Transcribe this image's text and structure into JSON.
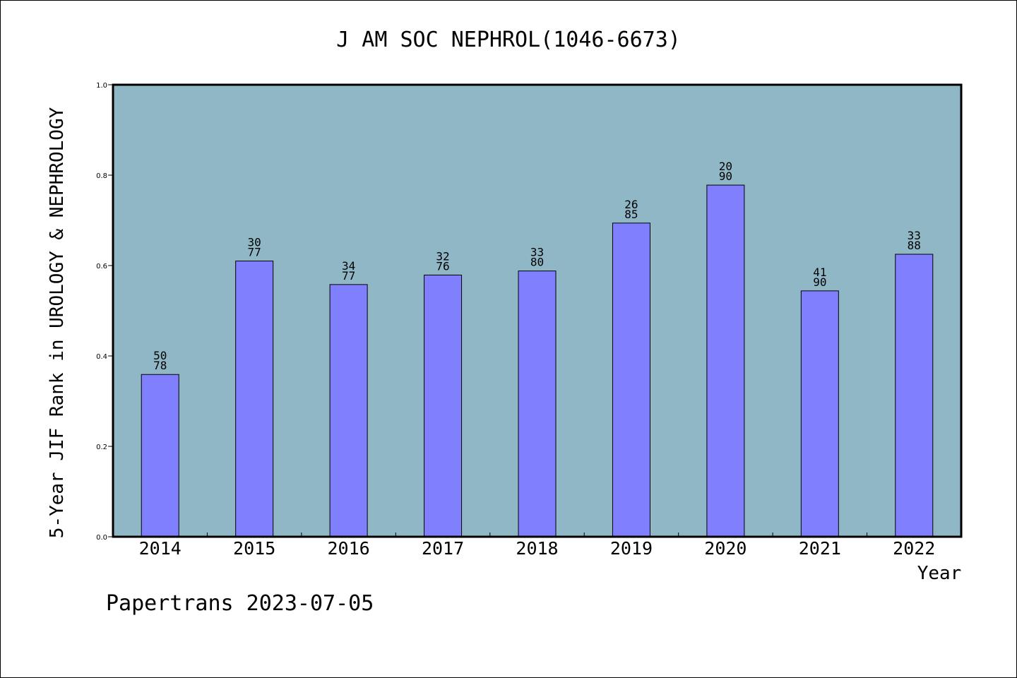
{
  "colors": {
    "plot_background": "#8fb7c6",
    "bar_fill": "#8080ff",
    "bar_stroke": "#000000",
    "frame": "#000000"
  },
  "watermark": "Papertrans 2023-07-05",
  "chart_data": {
    "type": "bar",
    "title": "J AM SOC NEPHROL(1046-6673)",
    "xlabel": "Year",
    "ylabel": "5-Year JIF Rank in UROLOGY & NEPHROLOGY",
    "ylim": [
      0,
      1
    ],
    "yticks": [
      "0.0",
      "0.2",
      "0.4",
      "0.6",
      "0.8",
      "1.0"
    ],
    "grid": false,
    "categories": [
      "2014",
      "2015",
      "2016",
      "2017",
      "2018",
      "2019",
      "2020",
      "2021",
      "2022"
    ],
    "values": [
      0.359,
      0.61,
      0.558,
      0.579,
      0.588,
      0.694,
      0.778,
      0.544,
      0.625
    ],
    "data_labels": [
      [
        "50",
        "78"
      ],
      [
        "30",
        "77"
      ],
      [
        "34",
        "77"
      ],
      [
        "32",
        "76"
      ],
      [
        "33",
        "80"
      ],
      [
        "26",
        "85"
      ],
      [
        "20",
        "90"
      ],
      [
        "41",
        "90"
      ],
      [
        "33",
        "88"
      ]
    ]
  }
}
